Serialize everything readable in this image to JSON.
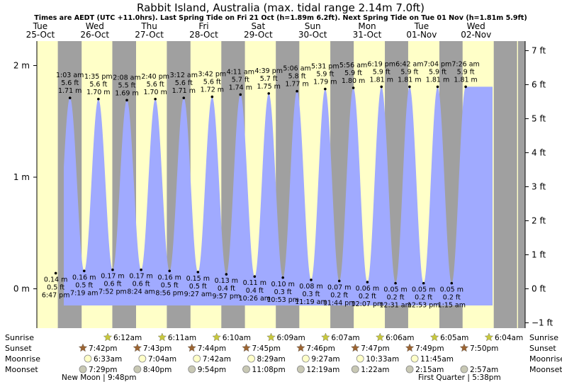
{
  "chart_data": {
    "type": "area",
    "title": "Rabbit Island, Australia (max. tidal range 2.14m 7.0ft)",
    "subtitle": "Times are AEDT (UTC +11.0hrs). Last Spring Tide on Fri 21 Oct (h=1.89m 6.2ft). Next Spring Tide on Tue 01 Nov (h=1.81m 5.9ft)",
    "days": [
      {
        "dow": "Tue",
        "date": "25-Oct"
      },
      {
        "dow": "Wed",
        "date": "26-Oct"
      },
      {
        "dow": "Thu",
        "date": "27-Oct"
      },
      {
        "dow": "Fri",
        "date": "28-Oct"
      },
      {
        "dow": "Sat",
        "date": "29-Oct"
      },
      {
        "dow": "Sun",
        "date": "30-Oct"
      },
      {
        "dow": "Mon",
        "date": "31-Oct"
      },
      {
        "dow": "Tue",
        "date": "01-Nov"
      },
      {
        "dow": "Wed",
        "date": "02-Nov"
      }
    ],
    "y_left": {
      "label": "m",
      "ticks": [
        "0 m",
        "1 m",
        "2 m"
      ],
      "values": [
        0,
        1,
        2
      ]
    },
    "y_right": {
      "label": "ft",
      "ticks": [
        "−1 ft",
        "0 ft",
        "1 ft",
        "2 ft",
        "3 ft",
        "4 ft",
        "5 ft",
        "6 ft",
        "7 ft"
      ],
      "values": [
        -1,
        0,
        1,
        2,
        3,
        4,
        5,
        6,
        7
      ]
    },
    "ylim": [
      -0.33,
      2.27
    ],
    "high_tides": [
      {
        "time": "1:03 am",
        "ft": "5.6 ft",
        "m": "1.71 m",
        "h": 1.71,
        "day": 1,
        "hour": 1.05
      },
      {
        "time": "1:35 pm",
        "ft": "5.6 ft",
        "m": "1.70 m",
        "h": 1.7,
        "day": 1,
        "hour": 13.583
      },
      {
        "time": "2:08 am",
        "ft": "5.5 ft",
        "m": "1.69 m",
        "h": 1.69,
        "day": 2,
        "hour": 2.133
      },
      {
        "time": "2:40 pm",
        "ft": "5.6 ft",
        "m": "1.70 m",
        "h": 1.7,
        "day": 2,
        "hour": 14.667
      },
      {
        "time": "3:12 am",
        "ft": "5.6 ft",
        "m": "1.71 m",
        "h": 1.71,
        "day": 3,
        "hour": 3.2
      },
      {
        "time": "3:42 pm",
        "ft": "5.6 ft",
        "m": "1.72 m",
        "h": 1.72,
        "day": 3,
        "hour": 15.7
      },
      {
        "time": "4:11 am",
        "ft": "5.7 ft",
        "m": "1.74 m",
        "h": 1.74,
        "day": 4,
        "hour": 4.183
      },
      {
        "time": "4:39 pm",
        "ft": "5.7 ft",
        "m": "1.75 m",
        "h": 1.75,
        "day": 4,
        "hour": 16.65
      },
      {
        "time": "5:06 am",
        "ft": "5.8 ft",
        "m": "1.77 m",
        "h": 1.77,
        "day": 5,
        "hour": 5.1
      },
      {
        "time": "5:31 pm",
        "ft": "5.9 ft",
        "m": "1.79 m",
        "h": 1.79,
        "day": 5,
        "hour": 17.517
      },
      {
        "time": "5:56 am",
        "ft": "5.9 ft",
        "m": "1.80 m",
        "h": 1.8,
        "day": 6,
        "hour": 5.933
      },
      {
        "time": "6:19 pm",
        "ft": "5.9 ft",
        "m": "1.81 m",
        "h": 1.81,
        "day": 6,
        "hour": 18.317
      },
      {
        "time": "6:42 am",
        "ft": "5.9 ft",
        "m": "1.81 m",
        "h": 1.81,
        "day": 7,
        "hour": 6.7
      },
      {
        "time": "7:04 pm",
        "ft": "5.9 ft",
        "m": "1.81 m",
        "h": 1.81,
        "day": 7,
        "hour": 19.067
      },
      {
        "time": "7:26 am",
        "ft": "5.9 ft",
        "m": "1.81 m",
        "h": 1.81,
        "day": 8,
        "hour": 7.433
      }
    ],
    "low_tides": [
      {
        "time": "6:47 pm",
        "ft": "0.5 ft",
        "m": "0.14 m",
        "h": 0.14,
        "day": 0,
        "hour": 18.783
      },
      {
        "time": "7:19 am",
        "ft": "0.5 ft",
        "m": "0.16 m",
        "h": 0.16,
        "day": 1,
        "hour": 7.317
      },
      {
        "time": "7:52 pm",
        "ft": "0.6 ft",
        "m": "0.17 m",
        "h": 0.17,
        "day": 1,
        "hour": 19.867
      },
      {
        "time": "8:24 am",
        "ft": "0.6 ft",
        "m": "0.17 m",
        "h": 0.17,
        "day": 2,
        "hour": 8.4
      },
      {
        "time": "8:56 pm",
        "ft": "0.5 ft",
        "m": "0.16 m",
        "h": 0.16,
        "day": 2,
        "hour": 20.933
      },
      {
        "time": "9:27 am",
        "ft": "0.5 ft",
        "m": "0.15 m",
        "h": 0.15,
        "day": 3,
        "hour": 9.45
      },
      {
        "time": "9:57 pm",
        "ft": "0.4 ft",
        "m": "0.13 m",
        "h": 0.13,
        "day": 3,
        "hour": 21.95
      },
      {
        "time": "10:26 am",
        "ft": "0.4 ft",
        "m": "0.11 m",
        "h": 0.11,
        "day": 4,
        "hour": 10.433
      },
      {
        "time": "10:53 pm",
        "ft": "0.3 ft",
        "m": "0.10 m",
        "h": 0.1,
        "day": 4,
        "hour": 22.883
      },
      {
        "time": "11:19 am",
        "ft": "0.3 ft",
        "m": "0.08 m",
        "h": 0.08,
        "day": 5,
        "hour": 11.317
      },
      {
        "time": "11:44 pm",
        "ft": "0.2 ft",
        "m": "0.07 m",
        "h": 0.07,
        "day": 5,
        "hour": 23.733
      },
      {
        "time": "12:07 pm",
        "ft": "0.2 ft",
        "m": "0.06 m",
        "h": 0.06,
        "day": 6,
        "hour": 12.117
      },
      {
        "time": "12:31 am",
        "ft": "0.2 ft",
        "m": "0.05 m",
        "h": 0.05,
        "day": 7,
        "hour": 0.517
      },
      {
        "time": "12:53 pm",
        "ft": "0.2 ft",
        "m": "0.05 m",
        "h": 0.05,
        "day": 7,
        "hour": 12.883
      },
      {
        "time": "1:15 am",
        "ft": "0.2 ft",
        "m": "0.05 m",
        "h": 0.05,
        "day": 8,
        "hour": 1.25
      }
    ],
    "sunrise": [
      "6:12am",
      "6:11am",
      "6:10am",
      "6:09am",
      "6:07am",
      "6:06am",
      "6:05am",
      "6:04am"
    ],
    "sunset": [
      "7:42pm",
      "7:43pm",
      "7:44pm",
      "7:45pm",
      "7:46pm",
      "7:47pm",
      "7:49pm",
      "7:50pm"
    ],
    "moonrise": [
      "6:33am",
      "7:04am",
      "7:42am",
      "8:29am",
      "9:27am",
      "10:33am",
      "11:45am"
    ],
    "moonset": [
      "7:29pm",
      "8:40pm",
      "9:54pm",
      "11:08pm",
      "12:19am",
      "1:22am",
      "2:15am",
      "2:57am"
    ],
    "row_labels": [
      "Sunrise",
      "Sunset",
      "Moonrise",
      "Moonset"
    ],
    "moon_phases": [
      {
        "label": "New Moon | 9:48pm"
      },
      {
        "label": "First Quarter | 5:38pm"
      }
    ],
    "colors": {
      "tide": "#a0aaff",
      "day": "#ffffc8",
      "night": "#a0a0a0",
      "title": "#000000",
      "date_text": "#ff0000",
      "sun_icon": "#c8c83c",
      "sunset_icon": "#9b6432"
    }
  }
}
